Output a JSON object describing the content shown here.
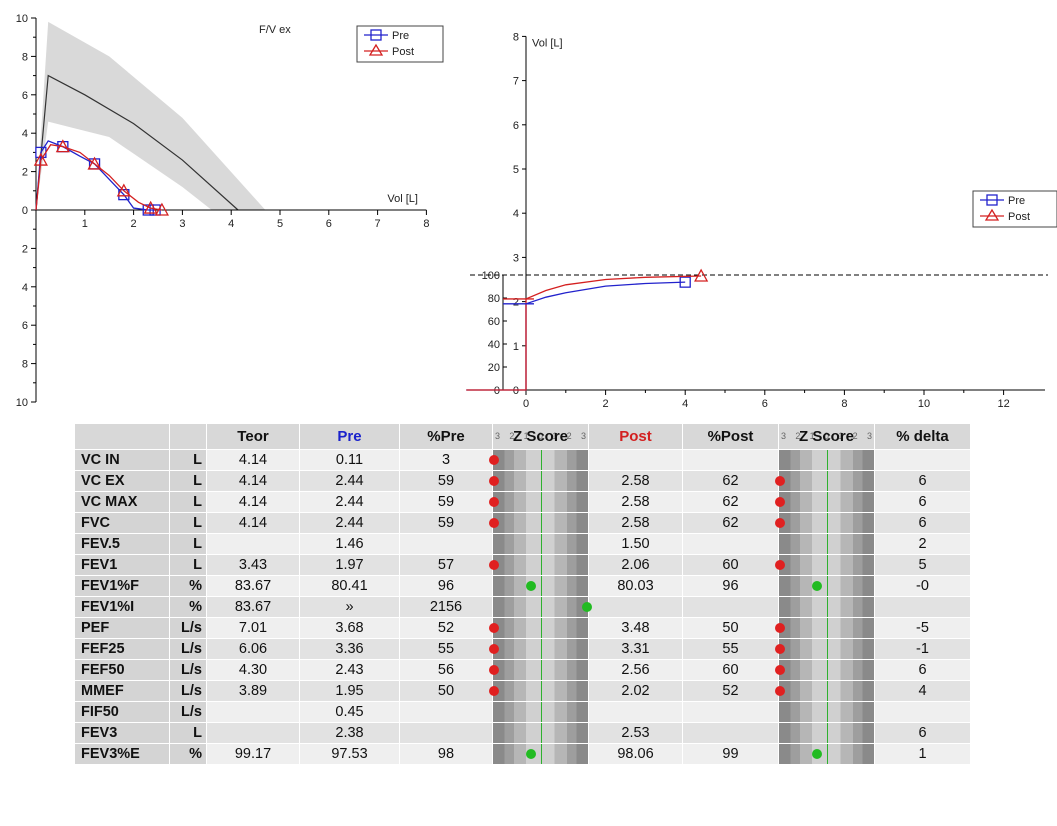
{
  "fv_chart": {
    "title": "F/V ex",
    "x_label": "Vol [L]",
    "x_ticks": [
      "1",
      "2",
      "3",
      "4",
      "5",
      "6",
      "7",
      "8"
    ],
    "y_ticks": [
      "10",
      "8",
      "6",
      "4",
      "2",
      "0",
      "2",
      "4",
      "6",
      "8",
      "10"
    ],
    "legend": [
      "Pre",
      "Post"
    ]
  },
  "vt_chart": {
    "y_label": "Vol [L]",
    "y_ticks_vol": [
      "8",
      "7",
      "6",
      "5",
      "4",
      "3",
      "2",
      "1",
      "0"
    ],
    "y_ticks_pct": [
      "100",
      "80",
      "60",
      "40",
      "20",
      "0"
    ],
    "x_ticks": [
      "0",
      "2",
      "4",
      "6",
      "8",
      "10",
      "12"
    ],
    "legend": [
      "Pre",
      "Post"
    ]
  },
  "chart_data": [
    {
      "type": "line",
      "title": "F/V ex",
      "xlabel": "Vol [L]",
      "xlim": [
        0,
        8
      ],
      "ylim": [
        -10,
        10
      ],
      "legend_position": "top-right",
      "series": [
        {
          "name": "Pre",
          "x": [
            0,
            0.1,
            0.25,
            0.55,
            0.9,
            1.2,
            1.5,
            1.8,
            2.0,
            2.3,
            2.44
          ],
          "y": [
            0,
            3.0,
            3.6,
            3.3,
            2.8,
            2.4,
            1.6,
            0.8,
            0.1,
            0,
            0
          ]
        },
        {
          "name": "Post",
          "x": [
            0,
            0.1,
            0.3,
            0.55,
            0.9,
            1.2,
            1.5,
            1.8,
            2.1,
            2.35,
            2.58
          ],
          "y": [
            0,
            2.6,
            3.4,
            3.3,
            3.0,
            2.4,
            1.8,
            1.0,
            0.4,
            0.1,
            0
          ]
        }
      ],
      "predicted_line": {
        "x": [
          0,
          0.25,
          1,
          2,
          3,
          4.14
        ],
        "y": [
          0,
          7.0,
          6.0,
          4.5,
          2.6,
          0
        ]
      },
      "predicted_band": {
        "upper_x": [
          0,
          0.25,
          1.5,
          3,
          4.7
        ],
        "upper_y": [
          0,
          9.8,
          8.0,
          4.8,
          0
        ],
        "lower_x": [
          3.6,
          3.0,
          1.5,
          0.25,
          0
        ],
        "lower_y": [
          0,
          1.2,
          3.8,
          4.6,
          0
        ]
      }
    },
    {
      "type": "line",
      "ylabel": "Vol [L]",
      "xlim": [
        0,
        13
      ],
      "ylim": [
        0,
        8
      ],
      "grid": false,
      "legend_position": "right",
      "series": [
        {
          "name": "Pre",
          "x": [
            -2,
            0,
            0.5,
            1,
            2,
            3,
            4.0
          ],
          "y": [
            1.95,
            1.95,
            2.1,
            2.2,
            2.35,
            2.41,
            2.44
          ]
        },
        {
          "name": "Post",
          "x": [
            -2,
            0,
            0.5,
            1,
            2,
            3,
            4.4
          ],
          "y": [
            2.06,
            2.06,
            2.25,
            2.38,
            2.5,
            2.55,
            2.58
          ]
        }
      ],
      "reference_line_pct": 100
    }
  ],
  "table": {
    "headers": [
      "",
      "",
      "Teor",
      "Pre",
      "%Pre",
      "Z Score",
      "Post",
      "%Post",
      "Z Score",
      "% delta"
    ],
    "rows": [
      {
        "param": "VC IN",
        "unit": "L",
        "teor": "4.14",
        "pre": "0.11",
        "pct_pre": "3",
        "z_pre": {
          "pos": 1,
          "color": "red"
        },
        "post": "",
        "pct_post": "",
        "z_post": null,
        "delta": ""
      },
      {
        "param": "VC EX",
        "unit": "L",
        "teor": "4.14",
        "pre": "2.44",
        "pct_pre": "59",
        "z_pre": {
          "pos": 1,
          "color": "red"
        },
        "post": "2.58",
        "pct_post": "62",
        "z_post": {
          "pos": 1,
          "color": "red"
        },
        "delta": "6"
      },
      {
        "param": "VC MAX",
        "unit": "L",
        "teor": "4.14",
        "pre": "2.44",
        "pct_pre": "59",
        "z_pre": {
          "pos": 1,
          "color": "red"
        },
        "post": "2.58",
        "pct_post": "62",
        "z_post": {
          "pos": 1,
          "color": "red"
        },
        "delta": "6"
      },
      {
        "param": "FVC",
        "unit": "L",
        "teor": "4.14",
        "pre": "2.44",
        "pct_pre": "59",
        "z_pre": {
          "pos": 1,
          "color": "red"
        },
        "post": "2.58",
        "pct_post": "62",
        "z_post": {
          "pos": 1,
          "color": "red"
        },
        "delta": "6"
      },
      {
        "param": "FEV.5",
        "unit": "L",
        "teor": "",
        "pre": "1.46",
        "pct_pre": "",
        "z_pre": null,
        "post": "1.50",
        "pct_post": "",
        "z_post": null,
        "delta": "2"
      },
      {
        "param": "FEV1",
        "unit": "L",
        "teor": "3.43",
        "pre": "1.97",
        "pct_pre": "57",
        "z_pre": {
          "pos": 1,
          "color": "red"
        },
        "post": "2.06",
        "pct_post": "60",
        "z_post": {
          "pos": 1,
          "color": "red"
        },
        "delta": "5"
      },
      {
        "param": "FEV1%F",
        "unit": "%",
        "teor": "83.67",
        "pre": "80.41",
        "pct_pre": "96",
        "z_pre": {
          "pos": 40,
          "color": "green"
        },
        "post": "80.03",
        "pct_post": "96",
        "z_post": {
          "pos": 40,
          "color": "green"
        },
        "delta": "-0"
      },
      {
        "param": "FEV1%I",
        "unit": "%",
        "teor": "83.67",
        "pre": "»",
        "pct_pre": "2156",
        "z_pre": {
          "pos": 99,
          "color": "green"
        },
        "post": "",
        "pct_post": "",
        "z_post": null,
        "delta": ""
      },
      {
        "param": "PEF",
        "unit": "L/s",
        "teor": "7.01",
        "pre": "3.68",
        "pct_pre": "52",
        "z_pre": {
          "pos": 1,
          "color": "red"
        },
        "post": "3.48",
        "pct_post": "50",
        "z_post": {
          "pos": 1,
          "color": "red"
        },
        "delta": "-5"
      },
      {
        "param": "FEF25",
        "unit": "L/s",
        "teor": "6.06",
        "pre": "3.36",
        "pct_pre": "55",
        "z_pre": {
          "pos": 1,
          "color": "red"
        },
        "post": "3.31",
        "pct_post": "55",
        "z_post": {
          "pos": 1,
          "color": "red"
        },
        "delta": "-1"
      },
      {
        "param": "FEF50",
        "unit": "L/s",
        "teor": "4.30",
        "pre": "2.43",
        "pct_pre": "56",
        "z_pre": {
          "pos": 1,
          "color": "red"
        },
        "post": "2.56",
        "pct_post": "60",
        "z_post": {
          "pos": 1,
          "color": "red"
        },
        "delta": "6"
      },
      {
        "param": "MMEF",
        "unit": "L/s",
        "teor": "3.89",
        "pre": "1.95",
        "pct_pre": "50",
        "z_pre": {
          "pos": 1,
          "color": "red"
        },
        "post": "2.02",
        "pct_post": "52",
        "z_post": {
          "pos": 1,
          "color": "red"
        },
        "delta": "4"
      },
      {
        "param": "FIF50",
        "unit": "L/s",
        "teor": "",
        "pre": "0.45",
        "pct_pre": "",
        "z_pre": null,
        "post": "",
        "pct_post": "",
        "z_post": null,
        "delta": ""
      },
      {
        "param": "FEV3",
        "unit": "L",
        "teor": "",
        "pre": "2.38",
        "pct_pre": "",
        "z_pre": null,
        "post": "2.53",
        "pct_post": "",
        "z_post": null,
        "delta": "6"
      },
      {
        "param": "FEV3%E",
        "unit": "%",
        "teor": "99.17",
        "pre": "97.53",
        "pct_pre": "98",
        "z_pre": {
          "pos": 40,
          "color": "green"
        },
        "post": "98.06",
        "pct_post": "99",
        "z_post": {
          "pos": 40,
          "color": "green"
        },
        "delta": "1"
      }
    ]
  },
  "colors": {
    "pre": "#2222cc",
    "post": "#d42020",
    "predicted": "#333333",
    "band": "#d9d9d9"
  }
}
